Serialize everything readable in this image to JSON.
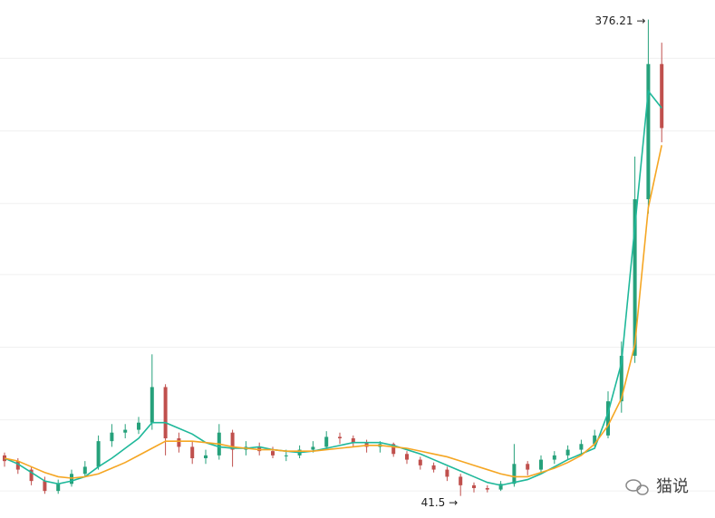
{
  "chart_data": {
    "type": "candlestick",
    "open": [
      70,
      66,
      60,
      52,
      45,
      50,
      57,
      62,
      80,
      86,
      88,
      93,
      118,
      82,
      76,
      68,
      70,
      86,
      74,
      76,
      73,
      70,
      70,
      74,
      76,
      83,
      82,
      79,
      76,
      78,
      71,
      67,
      63,
      60,
      55,
      49,
      47,
      46,
      50,
      64,
      60,
      67,
      70,
      74,
      78,
      84,
      108,
      140,
      250,
      345
    ],
    "high": [
      72,
      68,
      62,
      55,
      53,
      60,
      66,
      84,
      92,
      92,
      97,
      141,
      120,
      86,
      80,
      74,
      92,
      88,
      80,
      79,
      76,
      74,
      77,
      80,
      87,
      86,
      84,
      81,
      80,
      79,
      73,
      69,
      65,
      62,
      57,
      51,
      49,
      52,
      78,
      66,
      70,
      73,
      77,
      81,
      88,
      115,
      150,
      280,
      376.21,
      360
    ],
    "low": [
      62,
      57,
      49,
      43,
      43,
      48,
      55,
      60,
      76,
      82,
      85,
      88,
      70,
      72,
      64,
      64,
      67,
      62,
      70,
      70,
      68,
      66,
      68,
      72,
      74,
      78,
      76,
      72,
      72,
      69,
      64,
      60,
      58,
      52,
      41.5,
      44,
      44,
      45,
      48,
      56,
      58,
      64,
      67,
      71,
      76,
      82,
      100,
      135,
      240,
      290
    ],
    "close": [
      66,
      60,
      52,
      45,
      50,
      57,
      62,
      80,
      86,
      88,
      93,
      118,
      82,
      76,
      68,
      70,
      86,
      74,
      76,
      73,
      70,
      70,
      74,
      76,
      83,
      82,
      79,
      76,
      78,
      71,
      67,
      63,
      60,
      55,
      49,
      47,
      46,
      50,
      64,
      60,
      67,
      70,
      74,
      78,
      84,
      108,
      140,
      250,
      345,
      300
    ],
    "up_color": "#26a17b",
    "down_color": "#c0504d",
    "series": [
      {
        "color": "#1fb89a",
        "values": [
          68,
          64,
          58,
          52,
          50,
          52,
          55,
          62,
          68,
          75,
          82,
          93,
          93,
          89,
          85,
          79,
          76,
          75,
          75,
          76,
          74,
          73,
          72,
          73,
          75,
          77,
          79,
          79,
          79,
          77,
          74,
          71,
          67,
          63,
          59,
          55,
          51,
          49,
          51,
          53,
          57,
          62,
          67,
          71,
          75,
          100,
          135,
          231,
          326,
          314
        ]
      },
      {
        "color": "#f5a623",
        "values": [
          68,
          66,
          62,
          58,
          55,
          54,
          55,
          57,
          61,
          65,
          70,
          75,
          80,
          80,
          80,
          79,
          78,
          76,
          75,
          74,
          74,
          73,
          73,
          73,
          74,
          75,
          76,
          77,
          77,
          76,
          75,
          73,
          71,
          69,
          66,
          63,
          60,
          57,
          55,
          55,
          58,
          61,
          65,
          70,
          78,
          91,
          110,
          148,
          244,
          288
        ]
      }
    ],
    "max_label": "376.21 →",
    "min_label": "41.5 →",
    "ylim": [
      26,
      390
    ],
    "ygrid": [
      45,
      95,
      146,
      197,
      247,
      298,
      349
    ],
    "watermark": "猫说"
  }
}
